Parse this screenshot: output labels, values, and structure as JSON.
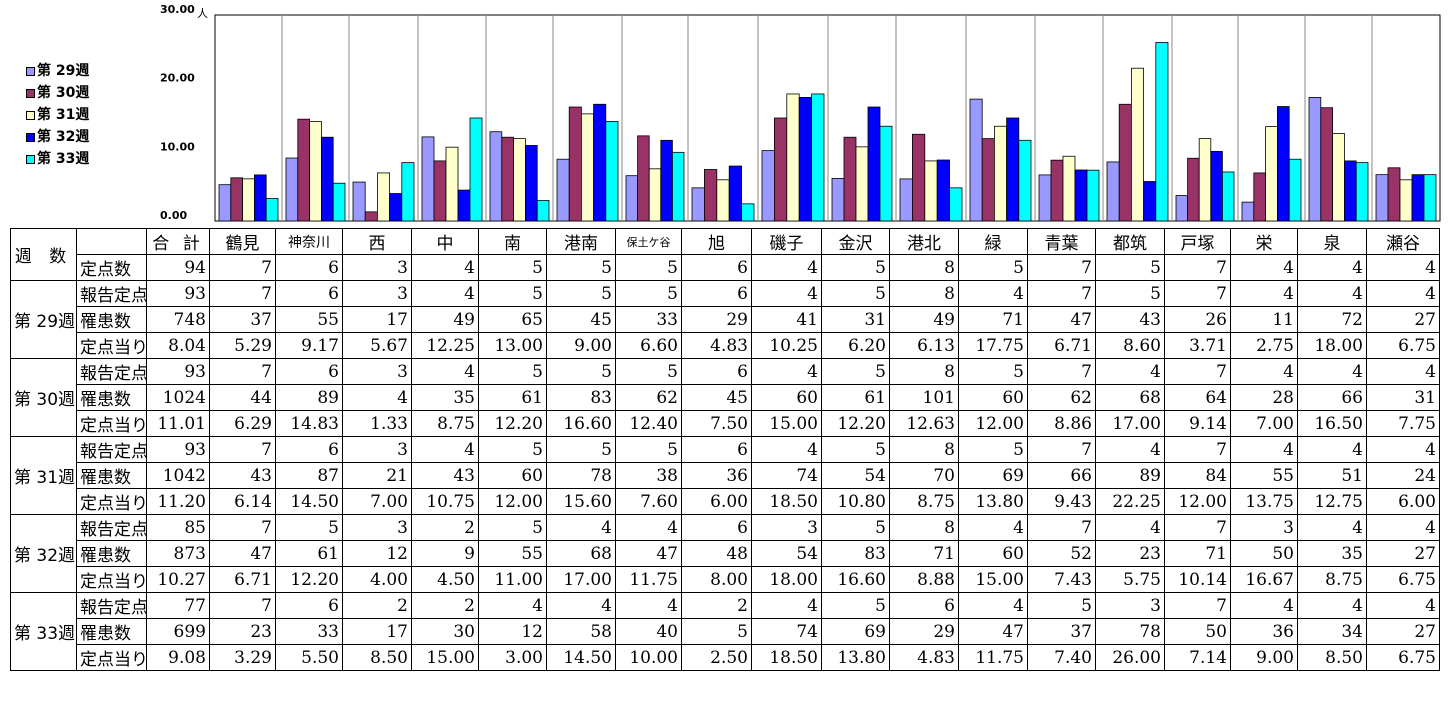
{
  "chart_data": {
    "type": "bar",
    "y_unit": "人",
    "ylim": [
      0,
      30
    ],
    "yticks": [
      "0.00",
      "10.00",
      "20.00",
      "30.00"
    ],
    "legend_position": "left",
    "categories": [
      "鶴見",
      "神奈川",
      "西",
      "中",
      "南",
      "港南",
      "保土ケ谷",
      "旭",
      "磯子",
      "金沢",
      "港北",
      "緑",
      "青葉",
      "都筑",
      "戸塚",
      "栄",
      "泉",
      "瀬谷"
    ],
    "series": [
      {
        "name": "第 29週",
        "color": "#9999ff",
        "values": [
          5.29,
          9.17,
          5.67,
          12.25,
          13.0,
          9.0,
          6.6,
          4.83,
          10.25,
          6.2,
          6.13,
          17.75,
          6.71,
          8.6,
          3.71,
          2.75,
          18.0,
          6.75
        ]
      },
      {
        "name": "第 30週",
        "color": "#993366",
        "values": [
          6.29,
          14.83,
          1.33,
          8.75,
          12.2,
          16.6,
          12.4,
          7.5,
          15.0,
          12.2,
          12.63,
          12.0,
          8.86,
          17.0,
          9.14,
          7.0,
          16.5,
          7.75
        ]
      },
      {
        "name": "第 31週",
        "color": "#ffffcc",
        "values": [
          6.14,
          14.5,
          7.0,
          10.75,
          12.0,
          15.6,
          7.6,
          6.0,
          18.5,
          10.8,
          8.75,
          13.8,
          9.43,
          22.25,
          12.0,
          13.75,
          12.75,
          6.0
        ]
      },
      {
        "name": "第 32週",
        "color": "#0000ff",
        "values": [
          6.71,
          12.2,
          4.0,
          4.5,
          11.0,
          17.0,
          11.75,
          8.0,
          18.0,
          16.6,
          8.88,
          15.0,
          7.43,
          5.75,
          10.14,
          16.67,
          8.75,
          6.75
        ]
      },
      {
        "name": "第 33週",
        "color": "#00ffff",
        "values": [
          3.29,
          5.5,
          8.5,
          15.0,
          3.0,
          14.5,
          10.0,
          2.5,
          18.5,
          13.8,
          4.83,
          11.75,
          7.4,
          26.0,
          7.14,
          9.0,
          8.5,
          6.75
        ]
      }
    ]
  },
  "table": {
    "week_header": "週 数",
    "total_header": "合 計",
    "districts": [
      "鶴見",
      "神奈川",
      "西",
      "中",
      "南",
      "港南",
      "保土ケ谷",
      "旭",
      "磯子",
      "金沢",
      "港北",
      "緑",
      "青葉",
      "都筑",
      "戸塚",
      "栄",
      "泉",
      "瀬谷"
    ],
    "fixed_points": {
      "label": "定点数",
      "values": [
        "94",
        "7",
        "6",
        "3",
        "4",
        "5",
        "5",
        "5",
        "6",
        "4",
        "5",
        "8",
        "5",
        "7",
        "5",
        "7",
        "4",
        "4",
        "4"
      ]
    },
    "weeks": [
      {
        "label": "第 29週",
        "reported": {
          "label": "報告定点",
          "values": [
            "93",
            "7",
            "6",
            "3",
            "4",
            "5",
            "5",
            "5",
            "6",
            "4",
            "5",
            "8",
            "4",
            "7",
            "5",
            "7",
            "4",
            "4",
            "4"
          ]
        },
        "patients": {
          "label": "罹患数",
          "values": [
            "748",
            "37",
            "55",
            "17",
            "49",
            "65",
            "45",
            "33",
            "29",
            "41",
            "31",
            "49",
            "71",
            "47",
            "43",
            "26",
            "11",
            "72",
            "27"
          ]
        },
        "per_point": {
          "label": "定点当り",
          "values": [
            "8.04",
            "5.29",
            "9.17",
            "5.67",
            "12.25",
            "13.00",
            "9.00",
            "6.60",
            "4.83",
            "10.25",
            "6.20",
            "6.13",
            "17.75",
            "6.71",
            "8.60",
            "3.71",
            "2.75",
            "18.00",
            "6.75"
          ]
        }
      },
      {
        "label": "第 30週",
        "reported": {
          "label": "報告定点",
          "values": [
            "93",
            "7",
            "6",
            "3",
            "4",
            "5",
            "5",
            "5",
            "6",
            "4",
            "5",
            "8",
            "5",
            "7",
            "4",
            "7",
            "4",
            "4",
            "4"
          ]
        },
        "patients": {
          "label": "罹患数",
          "values": [
            "1024",
            "44",
            "89",
            "4",
            "35",
            "61",
            "83",
            "62",
            "45",
            "60",
            "61",
            "101",
            "60",
            "62",
            "68",
            "64",
            "28",
            "66",
            "31"
          ]
        },
        "per_point": {
          "label": "定点当り",
          "values": [
            "11.01",
            "6.29",
            "14.83",
            "1.33",
            "8.75",
            "12.20",
            "16.60",
            "12.40",
            "7.50",
            "15.00",
            "12.20",
            "12.63",
            "12.00",
            "8.86",
            "17.00",
            "9.14",
            "7.00",
            "16.50",
            "7.75"
          ]
        }
      },
      {
        "label": "第 31週",
        "reported": {
          "label": "報告定点",
          "values": [
            "93",
            "7",
            "6",
            "3",
            "4",
            "5",
            "5",
            "5",
            "6",
            "4",
            "5",
            "8",
            "5",
            "7",
            "4",
            "7",
            "4",
            "4",
            "4"
          ]
        },
        "patients": {
          "label": "罹患数",
          "values": [
            "1042",
            "43",
            "87",
            "21",
            "43",
            "60",
            "78",
            "38",
            "36",
            "74",
            "54",
            "70",
            "69",
            "66",
            "89",
            "84",
            "55",
            "51",
            "24"
          ]
        },
        "per_point": {
          "label": "定点当り",
          "values": [
            "11.20",
            "6.14",
            "14.50",
            "7.00",
            "10.75",
            "12.00",
            "15.60",
            "7.60",
            "6.00",
            "18.50",
            "10.80",
            "8.75",
            "13.80",
            "9.43",
            "22.25",
            "12.00",
            "13.75",
            "12.75",
            "6.00"
          ]
        }
      },
      {
        "label": "第 32週",
        "reported": {
          "label": "報告定点",
          "values": [
            "85",
            "7",
            "5",
            "3",
            "2",
            "5",
            "4",
            "4",
            "6",
            "3",
            "5",
            "8",
            "4",
            "7",
            "4",
            "7",
            "3",
            "4",
            "4"
          ]
        },
        "patients": {
          "label": "罹患数",
          "values": [
            "873",
            "47",
            "61",
            "12",
            "9",
            "55",
            "68",
            "47",
            "48",
            "54",
            "83",
            "71",
            "60",
            "52",
            "23",
            "71",
            "50",
            "35",
            "27"
          ]
        },
        "per_point": {
          "label": "定点当り",
          "values": [
            "10.27",
            "6.71",
            "12.20",
            "4.00",
            "4.50",
            "11.00",
            "17.00",
            "11.75",
            "8.00",
            "18.00",
            "16.60",
            "8.88",
            "15.00",
            "7.43",
            "5.75",
            "10.14",
            "16.67",
            "8.75",
            "6.75"
          ]
        }
      },
      {
        "label": "第 33週",
        "reported": {
          "label": "報告定点",
          "values": [
            "77",
            "7",
            "6",
            "2",
            "2",
            "4",
            "4",
            "4",
            "2",
            "4",
            "5",
            "6",
            "4",
            "5",
            "3",
            "7",
            "4",
            "4",
            "4"
          ]
        },
        "patients": {
          "label": "罹患数",
          "values": [
            "699",
            "23",
            "33",
            "17",
            "30",
            "12",
            "58",
            "40",
            "5",
            "74",
            "69",
            "29",
            "47",
            "37",
            "78",
            "50",
            "36",
            "34",
            "27"
          ]
        },
        "per_point": {
          "label": "定点当り",
          "values": [
            "9.08",
            "3.29",
            "5.50",
            "8.50",
            "15.00",
            "3.00",
            "14.50",
            "10.00",
            "2.50",
            "18.50",
            "13.80",
            "4.83",
            "11.75",
            "7.40",
            "26.00",
            "7.14",
            "9.00",
            "8.50",
            "6.75"
          ]
        }
      }
    ]
  }
}
